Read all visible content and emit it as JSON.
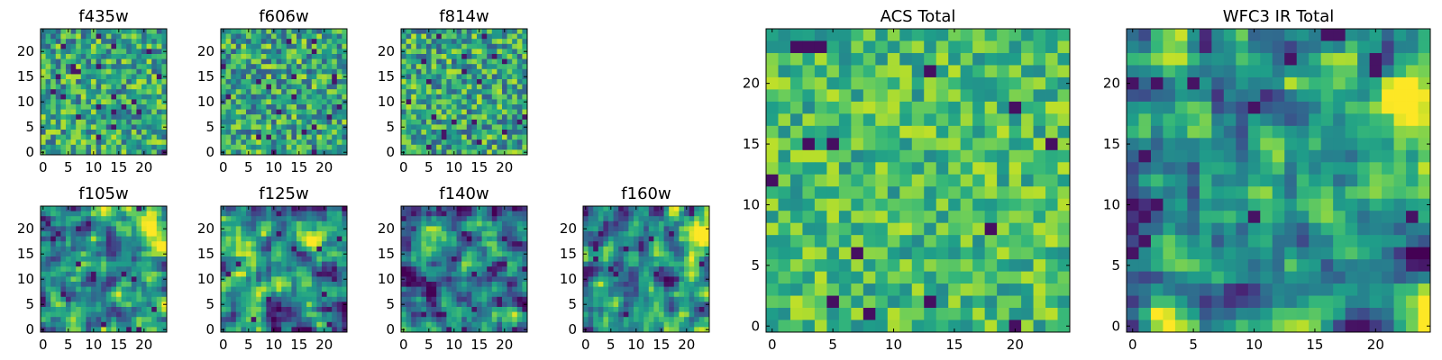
{
  "chart_data": [
    {
      "type": "heatmap",
      "id": "f435w",
      "title": "f435w",
      "cols": 25,
      "rows": 25,
      "colormap": "viridis",
      "profile": "noise",
      "seed": 11,
      "value_range": [
        0,
        1
      ],
      "xticks": [
        0,
        5,
        10,
        15,
        20
      ],
      "xtick_labels": [
        "0",
        "5",
        "10",
        "15",
        "20"
      ],
      "yticks": [
        0,
        5,
        10,
        15,
        20
      ],
      "ytick_labels": [
        "0",
        "5",
        "10",
        "15",
        "20"
      ]
    },
    {
      "type": "heatmap",
      "id": "f606w",
      "title": "f606w",
      "cols": 25,
      "rows": 25,
      "colormap": "viridis",
      "profile": "noise",
      "seed": 23,
      "value_range": [
        0,
        1
      ],
      "xticks": [
        0,
        5,
        10,
        15,
        20
      ],
      "xtick_labels": [
        "0",
        "5",
        "10",
        "15",
        "20"
      ],
      "yticks": [
        0,
        5,
        10,
        15,
        20
      ],
      "ytick_labels": [
        "0",
        "5",
        "10",
        "15",
        "20"
      ]
    },
    {
      "type": "heatmap",
      "id": "f814w",
      "title": "f814w",
      "cols": 25,
      "rows": 25,
      "colormap": "viridis",
      "profile": "noise",
      "seed": 37,
      "value_range": [
        0,
        1
      ],
      "xticks": [
        0,
        5,
        10,
        15,
        20
      ],
      "xtick_labels": [
        "0",
        "5",
        "10",
        "15",
        "20"
      ],
      "yticks": [
        0,
        5,
        10,
        15,
        20
      ],
      "ytick_labels": [
        "0",
        "5",
        "10",
        "15",
        "20"
      ]
    },
    {
      "type": "heatmap",
      "id": "f105w",
      "title": "f105w",
      "cols": 25,
      "rows": 25,
      "colormap": "viridis",
      "profile": "smooth_bright_corner",
      "seed": 41,
      "value_range": [
        0,
        1
      ],
      "xticks": [
        0,
        5,
        10,
        15,
        20
      ],
      "xtick_labels": [
        "0",
        "5",
        "10",
        "15",
        "20"
      ],
      "yticks": [
        0,
        5,
        10,
        15,
        20
      ],
      "ytick_labels": [
        "0",
        "5",
        "10",
        "15",
        "20"
      ]
    },
    {
      "type": "heatmap",
      "id": "f125w",
      "title": "f125w",
      "cols": 25,
      "rows": 25,
      "colormap": "viridis",
      "profile": "smooth_bright_corner",
      "seed": 53,
      "value_range": [
        0,
        1
      ],
      "xticks": [
        0,
        5,
        10,
        15,
        20
      ],
      "xtick_labels": [
        "0",
        "5",
        "10",
        "15",
        "20"
      ],
      "yticks": [
        0,
        5,
        10,
        15,
        20
      ],
      "ytick_labels": [
        "0",
        "5",
        "10",
        "15",
        "20"
      ]
    },
    {
      "type": "heatmap",
      "id": "f140w",
      "title": "f140w",
      "cols": 25,
      "rows": 25,
      "colormap": "viridis",
      "profile": "smooth",
      "seed": 67,
      "value_range": [
        0,
        1
      ],
      "xticks": [
        0,
        5,
        10,
        15,
        20
      ],
      "xtick_labels": [
        "0",
        "5",
        "10",
        "15",
        "20"
      ],
      "yticks": [
        0,
        5,
        10,
        15,
        20
      ],
      "ytick_labels": [
        "0",
        "5",
        "10",
        "15",
        "20"
      ]
    },
    {
      "type": "heatmap",
      "id": "f160w",
      "title": "f160w",
      "cols": 25,
      "rows": 25,
      "colormap": "viridis",
      "profile": "smooth_bright_corner",
      "seed": 79,
      "value_range": [
        0,
        1
      ],
      "xticks": [
        0,
        5,
        10,
        15,
        20
      ],
      "xtick_labels": [
        "0",
        "5",
        "10",
        "15",
        "20"
      ],
      "yticks": [
        0,
        5,
        10,
        15,
        20
      ],
      "ytick_labels": [
        "0",
        "5",
        "10",
        "15",
        "20"
      ]
    },
    {
      "type": "heatmap",
      "id": "acs-total",
      "title": "ACS Total",
      "cols": 25,
      "rows": 25,
      "colormap": "viridis",
      "profile": "noise_bright",
      "seed": 97,
      "value_range": [
        0,
        1
      ],
      "xticks": [
        0,
        5,
        10,
        15,
        20
      ],
      "xtick_labels": [
        "0",
        "5",
        "10",
        "15",
        "20"
      ],
      "yticks": [
        0,
        5,
        10,
        15,
        20
      ],
      "ytick_labels": [
        "0",
        "5",
        "10",
        "15",
        "20"
      ]
    },
    {
      "type": "heatmap",
      "id": "wfc3-ir-total",
      "title": "WFC3 IR Total",
      "cols": 25,
      "rows": 25,
      "colormap": "viridis",
      "profile": "smooth_bright_corner",
      "seed": 113,
      "value_range": [
        0,
        1
      ],
      "xticks": [
        0,
        5,
        10,
        15,
        20
      ],
      "xtick_labels": [
        "0",
        "5",
        "10",
        "15",
        "20"
      ],
      "yticks": [
        0,
        5,
        10,
        15,
        20
      ],
      "ytick_labels": [
        "0",
        "5",
        "10",
        "15",
        "20"
      ]
    }
  ]
}
